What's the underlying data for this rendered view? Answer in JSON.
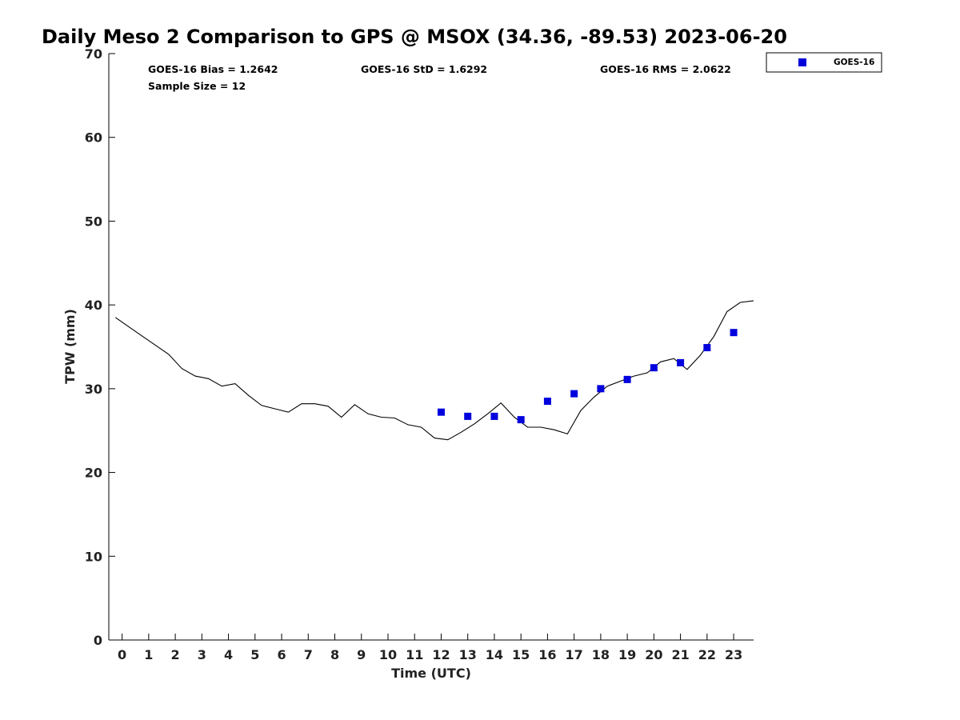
{
  "chart_data": {
    "type": "scatter",
    "title": "Daily Meso 2 Comparison to GPS @ MSOX (34.36, -89.53) 2023-06-20",
    "xlabel": "Time (UTC)",
    "ylabel": "TPW (mm)",
    "xlim": [
      -0.5,
      23.75
    ],
    "ylim": [
      0,
      70
    ],
    "x_ticks": [
      "0",
      "1",
      "2",
      "3",
      "4",
      "5",
      "6",
      "7",
      "8",
      "9",
      "10",
      "11",
      "12",
      "13",
      "14",
      "15",
      "16",
      "17",
      "18",
      "19",
      "20",
      "21",
      "22",
      "23"
    ],
    "y_ticks": [
      "0",
      "10",
      "20",
      "30",
      "40",
      "50",
      "60",
      "70"
    ],
    "grid": false,
    "legend_position": "outside-top-right",
    "stats": {
      "bias": "GOES-16 Bias = 1.2642",
      "std": "GOES-16 StD = 1.6292",
      "rms": "GOES-16 RMS = 2.0622",
      "sample": "Sample Size = 12"
    },
    "series": [
      {
        "name": "GOES-16",
        "kind": "scatter",
        "marker": "square",
        "color": "#0000dd",
        "x": [
          12,
          13,
          14,
          15,
          16,
          17,
          18,
          19,
          20,
          21,
          22,
          23
        ],
        "y": [
          27.2,
          26.7,
          26.7,
          26.3,
          28.5,
          29.4,
          30.0,
          31.1,
          32.5,
          33.1,
          34.9,
          36.7
        ]
      },
      {
        "kind": "line",
        "color": "#000000",
        "x": [
          -0.25,
          0.25,
          0.75,
          1.25,
          1.75,
          2.25,
          2.75,
          3.25,
          3.75,
          4.25,
          4.75,
          5.25,
          5.75,
          6.25,
          6.75,
          7.25,
          7.75,
          8.25,
          8.75,
          9.25,
          9.75,
          10.25,
          10.75,
          11.25,
          11.75,
          12.25,
          12.75,
          13.25,
          13.75,
          14.25,
          14.75,
          15.25,
          15.75,
          16.25,
          16.75,
          17.25,
          17.75,
          18.25,
          18.75,
          19.25,
          19.75,
          20.25,
          20.75,
          21.25,
          21.75,
          22.25,
          22.75,
          23.25,
          23.75
        ],
        "y": [
          38.5,
          37.4,
          36.3,
          35.2,
          34.1,
          32.4,
          31.5,
          31.2,
          30.3,
          30.6,
          29.2,
          28.0,
          27.6,
          27.2,
          28.2,
          28.2,
          27.9,
          26.6,
          28.1,
          27.0,
          26.6,
          26.5,
          25.7,
          25.4,
          24.1,
          23.9,
          24.8,
          25.8,
          27.0,
          28.3,
          26.6,
          25.4,
          25.4,
          25.1,
          24.6,
          27.4,
          29.0,
          30.3,
          30.9,
          31.5,
          31.9,
          33.2,
          33.6,
          32.3,
          34.0,
          36.2,
          39.2,
          40.3,
          40.5
        ]
      }
    ]
  }
}
